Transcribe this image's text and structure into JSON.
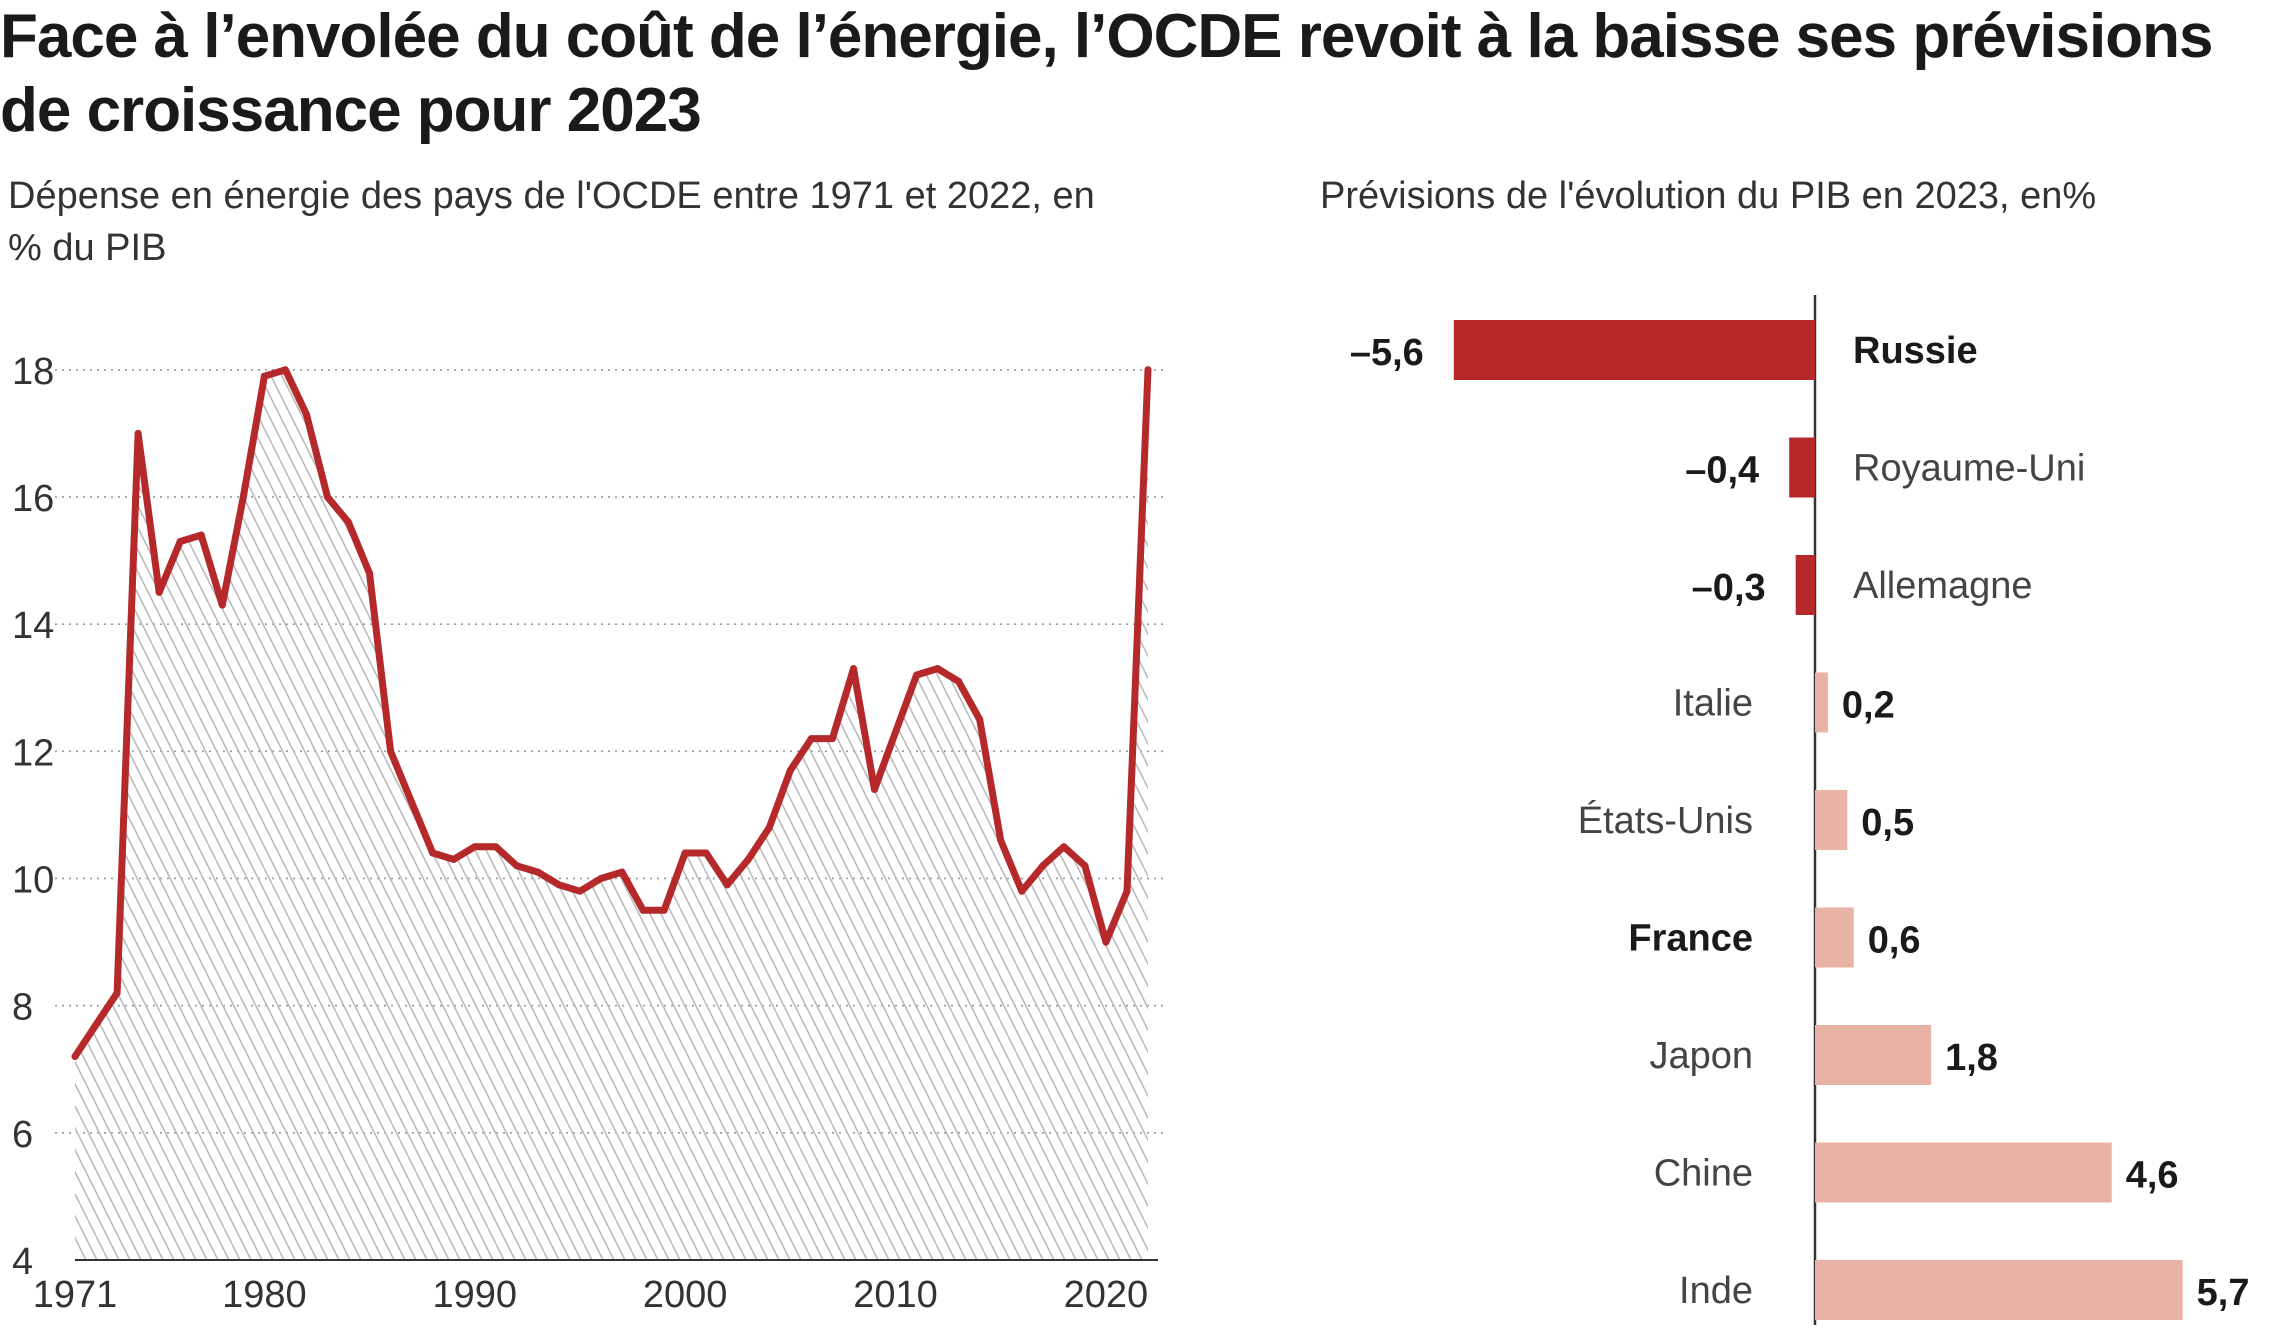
{
  "title": "Face à l’envolée du coût de l’énergie, l’OCDE revoit à la baisse ses prévisions de croissance pour 2023",
  "colors": {
    "line": "#B5292B",
    "negative_bar": "#B5292B",
    "positive_bar": "#E8B3A5",
    "hatch": "#bbbbbb",
    "grid": "#9a9a9a",
    "axis": "#333333"
  },
  "chart_data": [
    {
      "type": "line",
      "title": "Dépense en énergie des pays de l'OCDE entre 1971 et 2022, en % du PIB",
      "xlabel": "",
      "ylabel": "",
      "x_ticks": [
        "1971",
        "1980",
        "1990",
        "2000",
        "2010",
        "2020"
      ],
      "y_ticks": [
        "4",
        "6",
        "8",
        "10",
        "12",
        "14",
        "16",
        "18"
      ],
      "xlim": [
        1971,
        2022
      ],
      "ylim": [
        4,
        18.5
      ],
      "grid": true,
      "fill": "hatched",
      "series": [
        {
          "x": [
            1971,
            1972,
            1973,
            1974,
            1975,
            1976,
            1977,
            1978,
            1979,
            1980,
            1981,
            1982,
            1983,
            1984,
            1985,
            1986,
            1987,
            1988,
            1989,
            1990,
            1991,
            1992,
            1993,
            1994,
            1995,
            1996,
            1997,
            1998,
            1999,
            2000,
            2001,
            2002,
            2003,
            2004,
            2005,
            2006,
            2007,
            2008,
            2009,
            2010,
            2011,
            2012,
            2013,
            2014,
            2015,
            2016,
            2017,
            2018,
            2019,
            2020,
            2021,
            2022
          ],
          "values": [
            7.2,
            7.7,
            8.2,
            17.0,
            14.5,
            15.3,
            15.4,
            14.3,
            16.0,
            17.9,
            18.0,
            17.3,
            16.0,
            15.6,
            14.8,
            12.0,
            11.2,
            10.4,
            10.3,
            10.5,
            10.5,
            10.2,
            10.1,
            9.9,
            9.8,
            10.0,
            10.1,
            9.5,
            9.5,
            10.4,
            10.4,
            9.9,
            10.3,
            10.8,
            11.7,
            12.2,
            12.2,
            13.3,
            11.4,
            12.3,
            13.2,
            13.3,
            13.1,
            12.5,
            10.6,
            9.8,
            10.2,
            10.5,
            10.2,
            9.0,
            9.8,
            18.0
          ]
        }
      ]
    },
    {
      "type": "bar",
      "orientation": "horizontal",
      "title": "Prévisions de l'évolution du PIB en 2023, en%",
      "categories": [
        "Russie",
        "Royaume-Uni",
        "Allemagne",
        "Italie",
        "États-Unis",
        "France",
        "Japon",
        "Chine",
        "Inde"
      ],
      "values": [
        -5.6,
        -0.4,
        -0.3,
        0.2,
        0.5,
        0.6,
        1.8,
        4.6,
        5.7
      ],
      "value_labels": [
        "–5,6",
        "–0,4",
        "–0,3",
        "0,2",
        "0,5",
        "0,6",
        "1,8",
        "4,6",
        "5,7"
      ],
      "bold_categories": [
        "Russie",
        "France"
      ],
      "grid": false
    }
  ]
}
